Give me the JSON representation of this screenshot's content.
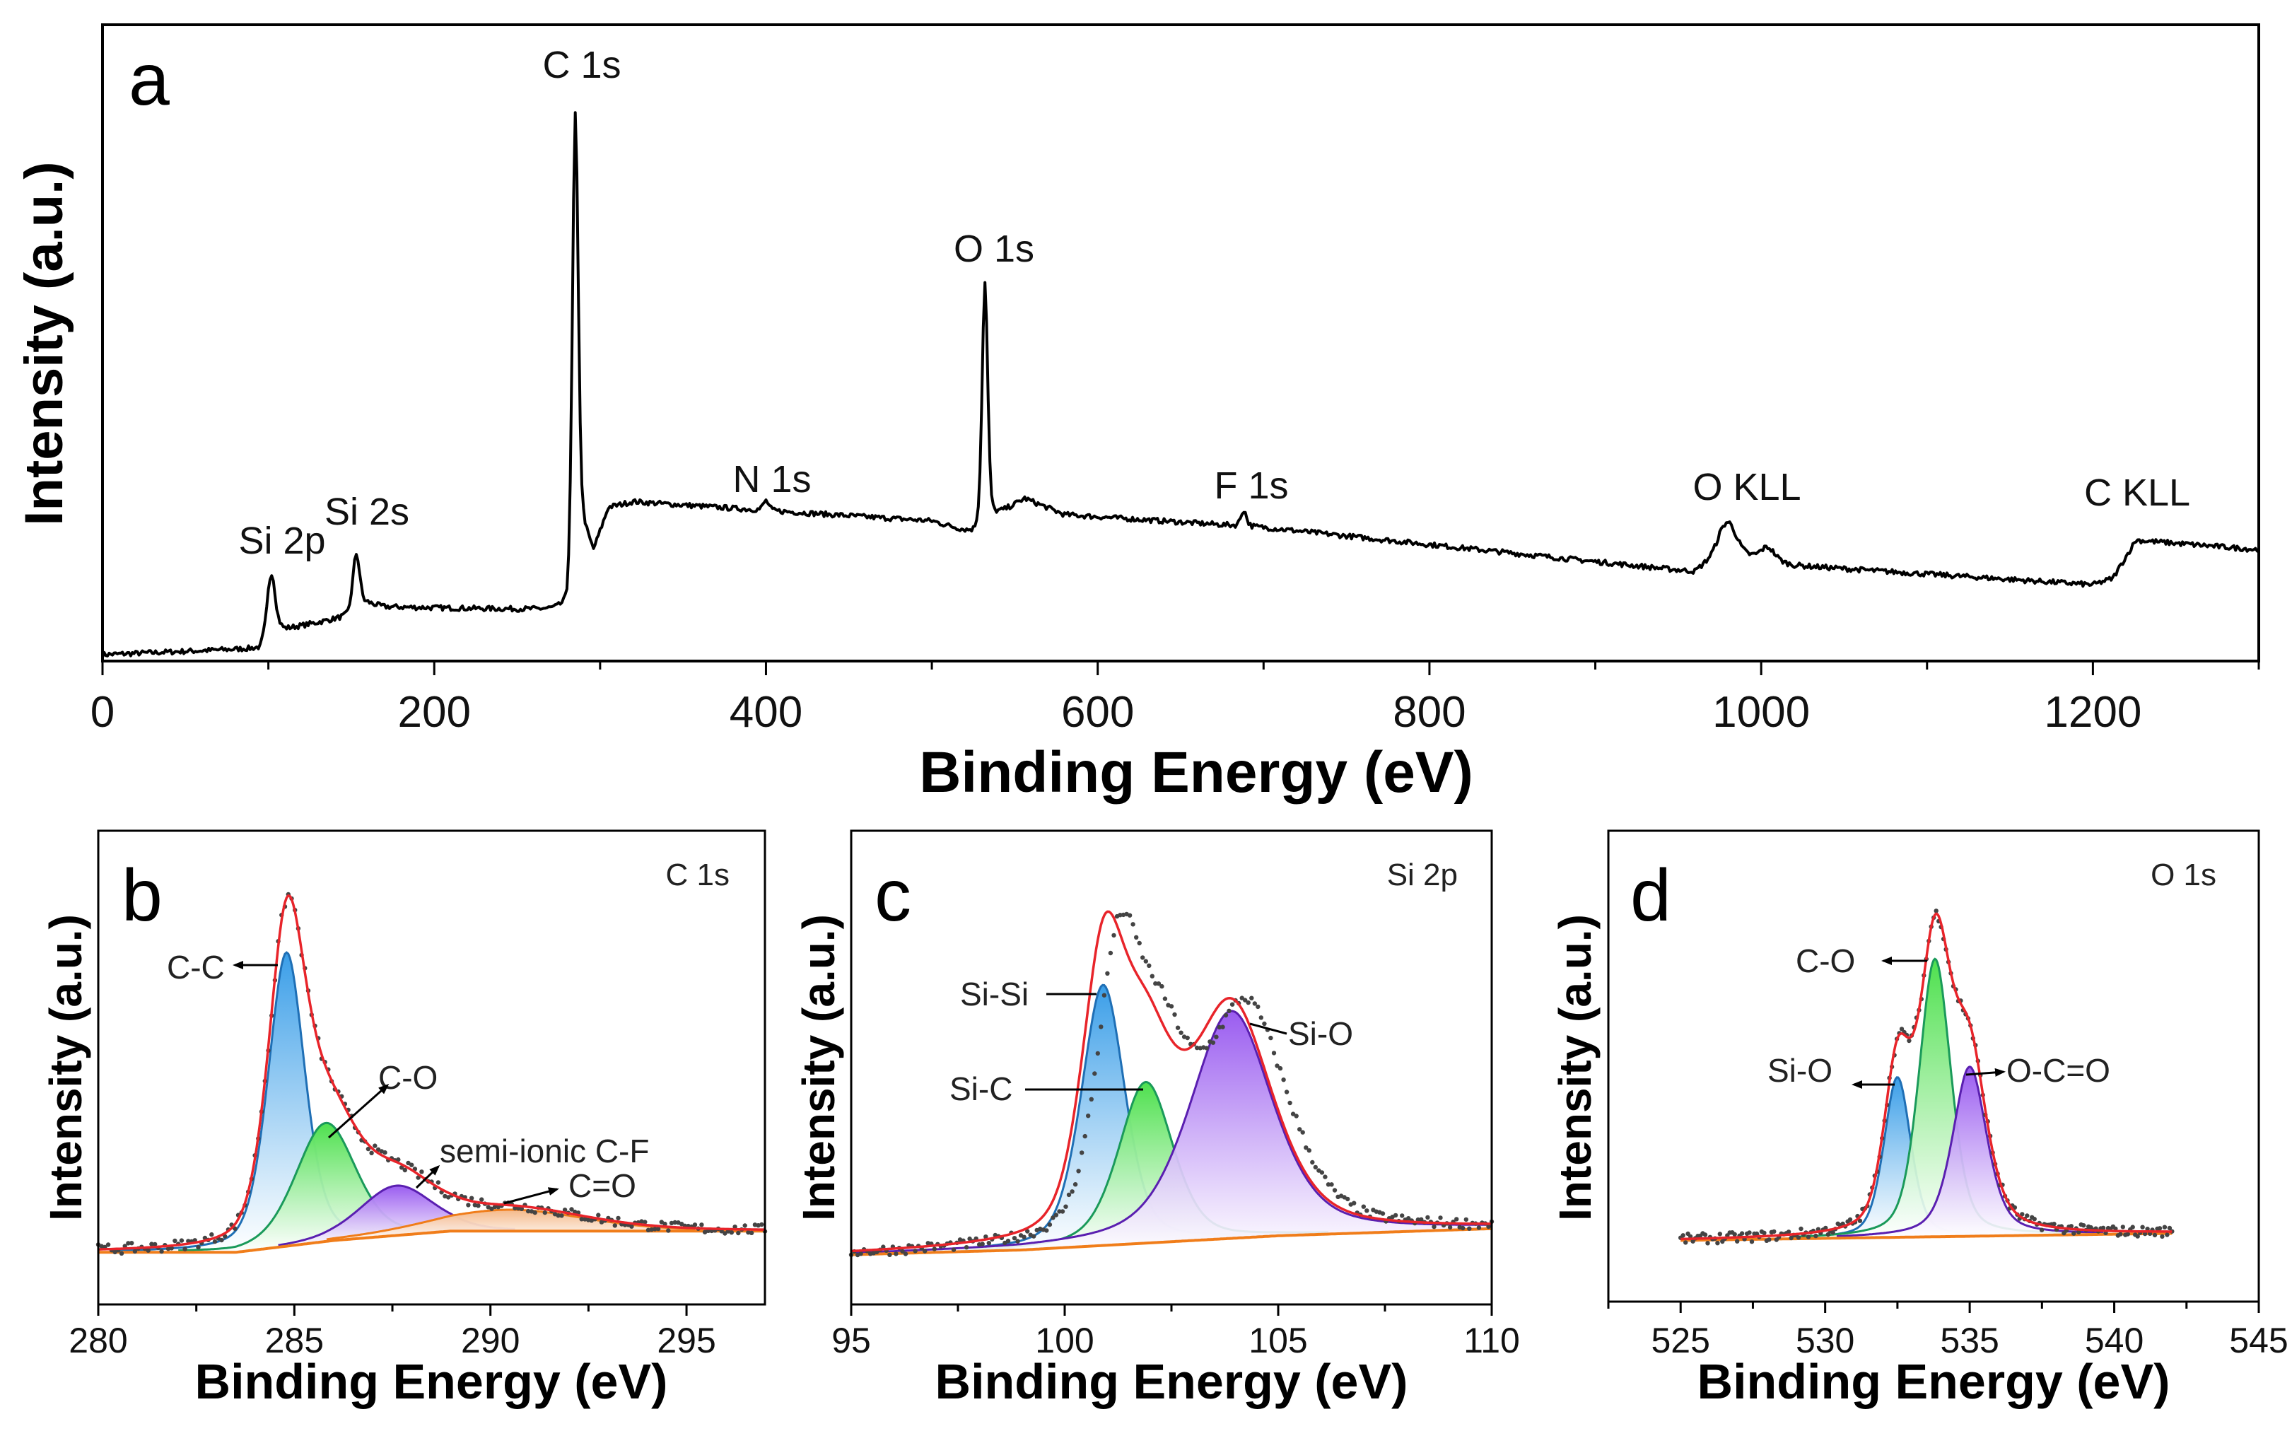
{
  "chart_data": [
    {
      "type": "line",
      "panel": "a",
      "title": "",
      "xlabel": "Binding Energy (eV)",
      "ylabel": "Intensity (a.u.)",
      "xlim": [
        0,
        1300
      ],
      "ylim": [
        0,
        100
      ],
      "xticks": [
        0,
        200,
        400,
        600,
        800,
        1000,
        1200
      ],
      "peak_labels": [
        "C 1s",
        "O 1s",
        "N 1s",
        "F 1s",
        "O KLL",
        "C KLL",
        "Si 2p",
        "Si 2s"
      ],
      "baseline": [
        [
          0,
          1
        ],
        [
          95,
          2
        ],
        [
          100,
          6
        ],
        [
          110,
          5
        ],
        [
          148,
          7
        ],
        [
          160,
          9
        ],
        [
          170,
          8.5
        ],
        [
          280,
          8
        ],
        [
          287,
          22
        ],
        [
          296,
          17
        ],
        [
          305,
          24
        ],
        [
          320,
          25
        ],
        [
          500,
          22
        ],
        [
          525,
          20
        ],
        [
          540,
          23
        ],
        [
          556,
          25.5
        ],
        [
          580,
          23
        ],
        [
          700,
          21
        ],
        [
          960,
          14
        ],
        [
          975,
          17
        ],
        [
          1000,
          16
        ],
        [
          1020,
          15
        ],
        [
          1200,
          12
        ],
        [
          1212,
          13
        ],
        [
          1226,
          19
        ],
        [
          1300,
          17.5
        ]
      ],
      "peaks": [
        {
          "name": "Si 2p",
          "center": 102,
          "height": 8,
          "fwhm": 5
        },
        {
          "name": "Si 2s",
          "center": 153,
          "height": 9,
          "fwhm": 5
        },
        {
          "name": "C 1s",
          "center": 285,
          "height": 68,
          "fwhm": 4
        },
        {
          "name": "N 1s",
          "center": 400,
          "height": 1.5,
          "fwhm": 4
        },
        {
          "name": "O 1s",
          "center": 532,
          "height": 38,
          "fwhm": 4
        },
        {
          "name": "F 1s",
          "center": 688,
          "height": 2.5,
          "fwhm": 4
        },
        {
          "name": "O KLL",
          "center": 980,
          "height": 5,
          "fwhm": 12
        },
        {
          "name": "O KLL 2",
          "center": 1004,
          "height": 2,
          "fwhm": 10
        }
      ]
    },
    {
      "type": "line",
      "panel": "b",
      "title": "C 1s",
      "xlabel": "Binding Energy (eV)",
      "ylabel": "Intensity (a.u.)",
      "xlim": [
        280,
        297
      ],
      "ylim": [
        0,
        100
      ],
      "xticks": [
        280,
        285,
        290,
        295
      ],
      "background": [
        [
          280,
          11
        ],
        [
          283.5,
          11
        ],
        [
          286,
          13.5
        ],
        [
          289,
          15.5
        ],
        [
          297,
          15.5
        ]
      ],
      "components": [
        {
          "name": "C-C",
          "center": 284.8,
          "height": 62,
          "fwhm": 1.1,
          "eta": 0.4,
          "color": "#3a9ee8",
          "line": "#1f6fb5"
        },
        {
          "name": "C-O",
          "center": 285.8,
          "height": 25,
          "fwhm": 1.8,
          "eta": 0.3,
          "color": "#4ee04e",
          "line": "#1a9a5a"
        },
        {
          "name": "semi-ionic C-F",
          "center": 287.6,
          "height": 10.5,
          "fwhm": 2.2,
          "eta": 0.3,
          "color": "#9a5cf0",
          "line": "#5a1fb0"
        },
        {
          "name": "C=O",
          "center": 290.5,
          "height": 4.5,
          "fwhm": 4.5,
          "eta": 0.3,
          "color": "#f5b888",
          "line": "#f07d1a"
        }
      ],
      "data_offset": 0,
      "background_color": "#f07d1a",
      "envelope_color": "#e8242a"
    },
    {
      "type": "line",
      "panel": "c",
      "title": "Si 2p",
      "xlabel": "Binding Energy (eV)",
      "ylabel": "Intensity (a.u.)",
      "xlim": [
        95,
        110
      ],
      "ylim": [
        0,
        100
      ],
      "xticks": [
        95,
        100,
        105,
        110
      ],
      "background": [
        [
          95,
          10.5
        ],
        [
          99,
          11.5
        ],
        [
          102,
          13
        ],
        [
          105,
          14.5
        ],
        [
          110,
          16
        ]
      ],
      "components": [
        {
          "name": "Si-Si",
          "center": 100.9,
          "height": 55,
          "fwhm": 1.2,
          "eta": 0.4,
          "color": "#3a9ee8",
          "line": "#1f6fb5"
        },
        {
          "name": "Si-C",
          "center": 101.9,
          "height": 34,
          "fwhm": 1.5,
          "eta": 0.4,
          "color": "#4ee04e",
          "line": "#1a9a5a"
        },
        {
          "name": "Si-O",
          "center": 103.9,
          "height": 48,
          "fwhm": 2.3,
          "eta": 0.5,
          "color": "#9a5cf0",
          "line": "#5a1fb0"
        }
      ],
      "data_offset": 0.35,
      "background_color": "#f07d1a",
      "envelope_color": "#e8242a"
    },
    {
      "type": "line",
      "panel": "d",
      "title": "O 1s",
      "xlabel": "Binding Energy (eV)",
      "ylabel": "Intensity (a.u.)",
      "xlim": [
        522.5,
        545
      ],
      "ylim": [
        0,
        100
      ],
      "xticks": [
        525,
        530,
        535,
        540,
        545
      ],
      "data_range": [
        525,
        542
      ],
      "background": [
        [
          525,
          13
        ],
        [
          542,
          14.5
        ]
      ],
      "components": [
        {
          "name": "Si-O",
          "center": 532.5,
          "height": 34,
          "fwhm": 1.1,
          "eta": 0.4,
          "color": "#3a9ee8",
          "line": "#1f6fb5"
        },
        {
          "name": "C-O",
          "center": 533.8,
          "height": 59,
          "fwhm": 1.3,
          "eta": 0.4,
          "color": "#4ee04e",
          "line": "#1a9a5a"
        },
        {
          "name": "O-C=O",
          "center": 535,
          "height": 36,
          "fwhm": 1.4,
          "eta": 0.5,
          "color": "#9a5cf0",
          "line": "#5a1fb0"
        }
      ],
      "data_offset": 0,
      "background_color": "#f07d1a",
      "envelope_color": "#e8242a"
    }
  ]
}
